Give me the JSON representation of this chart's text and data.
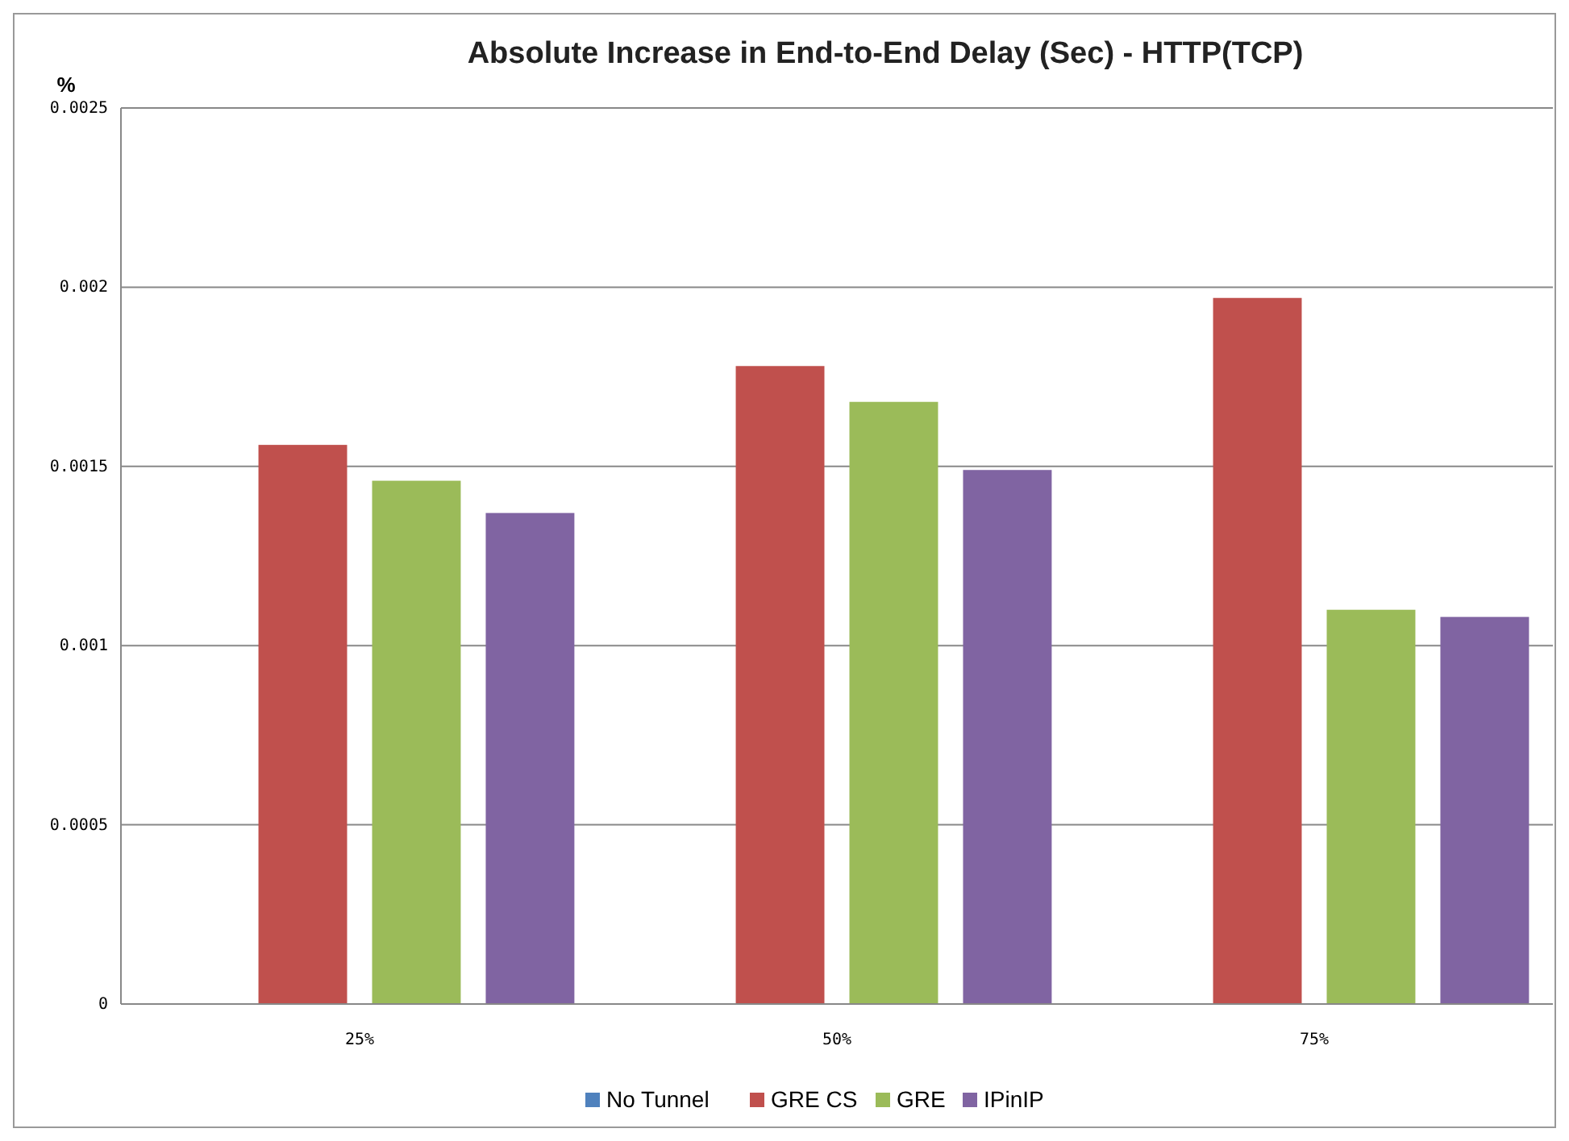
{
  "chart_data": {
    "type": "bar",
    "title": "Absolute Increase in End-to-End Delay (Sec) - HTTP(TCP)",
    "ylabel": "%",
    "categories": [
      "25%",
      "50%",
      "75%"
    ],
    "series": [
      {
        "name": "No Tunnel",
        "color": "#4f81bd",
        "values": [
          0,
          0,
          0
        ]
      },
      {
        "name": "GRE CS",
        "color": "#c0504d",
        "values": [
          0.00156,
          0.00178,
          0.00197
        ]
      },
      {
        "name": "GRE",
        "color": "#9bbb59",
        "values": [
          0.00146,
          0.00168,
          0.0011
        ]
      },
      {
        "name": "IPinIP",
        "color": "#8064a2",
        "values": [
          0.00137,
          0.00149,
          0.00108
        ]
      }
    ],
    "ylim": [
      0,
      0.0025
    ],
    "yticks": [
      0,
      0.0005,
      0.001,
      0.0015,
      0.002,
      0.0025
    ],
    "grid": "y",
    "legend": "bottom"
  }
}
